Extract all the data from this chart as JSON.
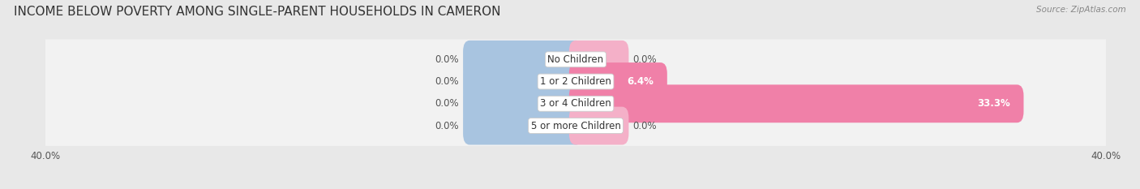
{
  "title": "INCOME BELOW POVERTY AMONG SINGLE-PARENT HOUSEHOLDS IN CAMERON",
  "source": "Source: ZipAtlas.com",
  "categories": [
    "No Children",
    "1 or 2 Children",
    "3 or 4 Children",
    "5 or more Children"
  ],
  "single_father": [
    0.0,
    0.0,
    0.0,
    0.0
  ],
  "single_mother": [
    0.0,
    6.4,
    33.3,
    0.0
  ],
  "father_color": "#a8c4e0",
  "mother_color": "#f080a8",
  "mother_color_light": "#f4b0c8",
  "xlim_left": -40,
  "xlim_right": 40,
  "axis_label_left": "40.0%",
  "axis_label_right": "40.0%",
  "bg_color": "#e8e8e8",
  "row_bg_color": "#f2f2f2",
  "title_fontsize": 11,
  "label_fontsize": 8.5,
  "value_fontsize": 8.5,
  "stub_size": 3.5,
  "father_stub_size": 8.0
}
